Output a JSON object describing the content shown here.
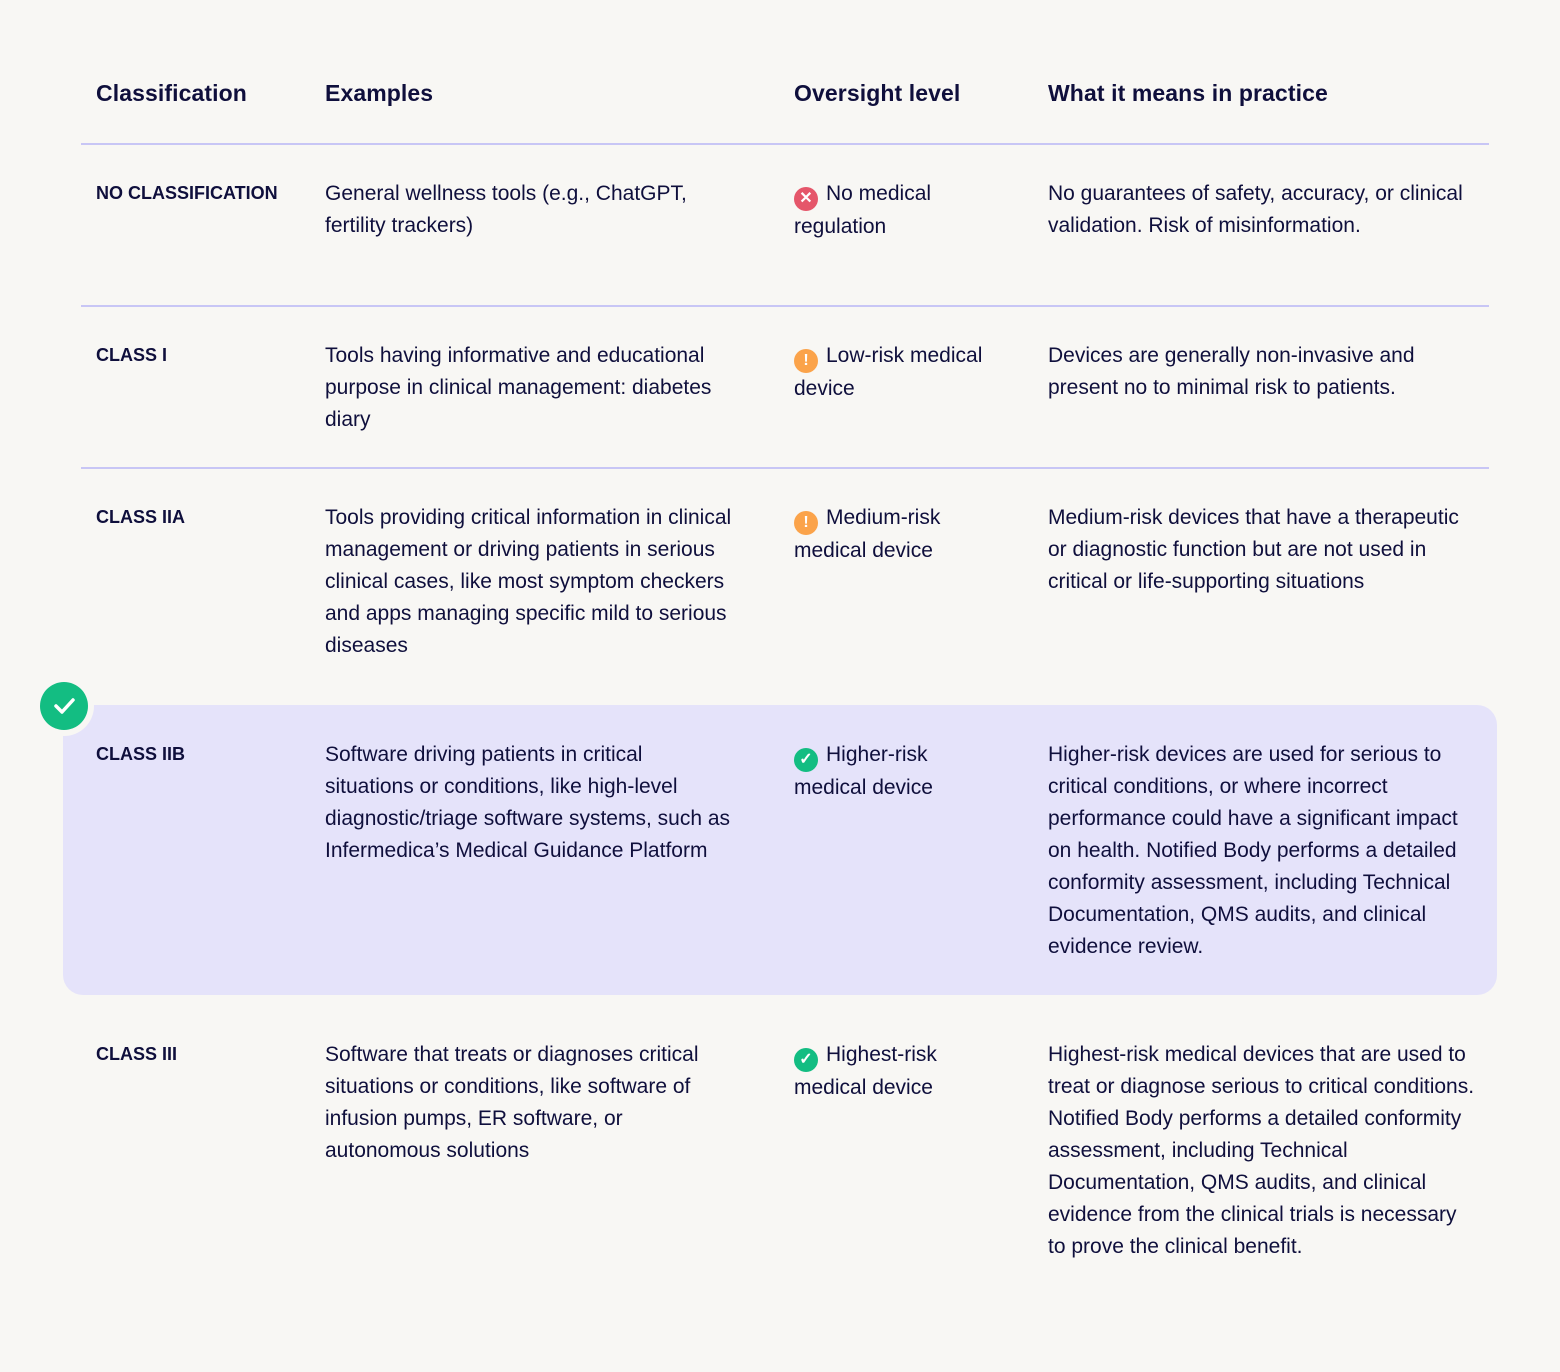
{
  "headers": {
    "classification": "Classification",
    "examples": "Examples",
    "oversight": "Oversight level",
    "practice": "What it means in practice"
  },
  "colors": {
    "danger": "#e5566a",
    "warning": "#fba34a",
    "success": "#13bd82",
    "highlight": "#e5e3fa"
  },
  "selected_row": "CLASS IIB",
  "rows": [
    {
      "classification": "NO CLASSIFICATION",
      "examples": "General wellness tools (e.g., ChatGPT, fertility trackers)",
      "oversight_icon": "x-circle-icon",
      "oversight": "No medical regulation",
      "practice": "No guarantees of safety, accuracy, or clinical validation. Risk of misinformation."
    },
    {
      "classification": "CLASS I",
      "examples": "Tools having informative and educational purpose in clinical management: diabetes diary",
      "oversight_icon": "exclamation-circle-icon",
      "oversight": "Low-risk medical device",
      "practice": "Devices are generally non-invasive and present no to minimal risk to patients."
    },
    {
      "classification": "CLASS IIA",
      "examples": "Tools providing critical information in clinical management or driving patients in serious clinical cases, like most symptom checkers and apps managing specific mild to serious diseases",
      "oversight_icon": "exclamation-circle-icon",
      "oversight": "Medium-risk medical device",
      "practice": "Medium-risk devices that have a therapeutic or diagnostic function but are not used in critical or life-supporting situations"
    },
    {
      "classification": "CLASS IIB",
      "examples": "Software driving patients in critical situations or conditions, like high-level diagnostic/triage software systems, such as Infermedica’s Medical Guidance Platform",
      "oversight_icon": "check-circle-icon",
      "oversight": "Higher-risk medical device",
      "practice": "Higher-risk devices are used for serious to critical conditions, or where incorrect performance could have a significant impact on health. Notified Body performs a detailed conformity assessment, including Technical Documentation, QMS audits, and clinical evidence review."
    },
    {
      "classification": "CLASS III",
      "examples": "Software that treats or diagnoses critical situations or conditions, like software of infusion pumps, ER software, or autonomous solutions",
      "oversight_icon": "check-circle-icon",
      "oversight": "Highest-risk medical device",
      "practice": "Highest-risk medical devices that are used to treat or diagnose serious to critical conditions. Notified Body performs a detailed conformity assessment, including Technical Documentation, QMS audits, and clinical evidence from the clinical trials is necessary to prove the clinical benefit."
    }
  ]
}
